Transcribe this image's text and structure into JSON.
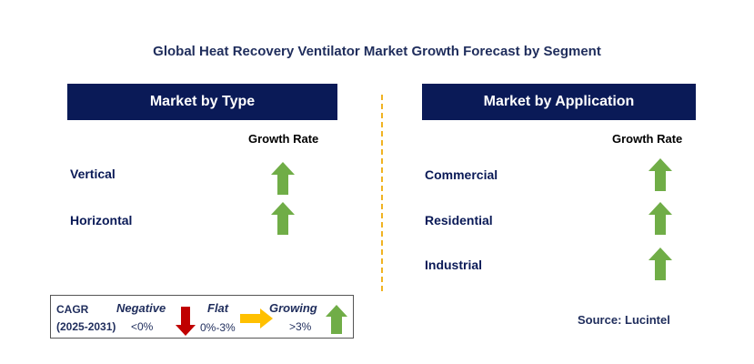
{
  "title": "Global Heat Recovery Ventilator Market Growth Forecast by Segment",
  "left_panel": {
    "header": "Market by Type",
    "growth_label": "Growth Rate",
    "rows": [
      {
        "label": "Vertical",
        "trend": "growing"
      },
      {
        "label": "Horizontal",
        "trend": "growing"
      }
    ]
  },
  "right_panel": {
    "header": "Market by Application",
    "growth_label": "Growth Rate",
    "rows": [
      {
        "label": "Commercial",
        "trend": "growing"
      },
      {
        "label": "Residential",
        "trend": "growing"
      },
      {
        "label": "Industrial",
        "trend": "growing"
      }
    ]
  },
  "legend": {
    "cagr": "CAGR",
    "period": "(2025-2031)",
    "negative": {
      "label": "Negative",
      "range": "<0%",
      "color": "#c00000"
    },
    "flat": {
      "label": "Flat",
      "range": "0%-3%",
      "color": "#ffc000"
    },
    "growing": {
      "label": "Growing",
      "range": ">3%",
      "color": "#70ad47"
    }
  },
  "source": "Source: Lucintel"
}
